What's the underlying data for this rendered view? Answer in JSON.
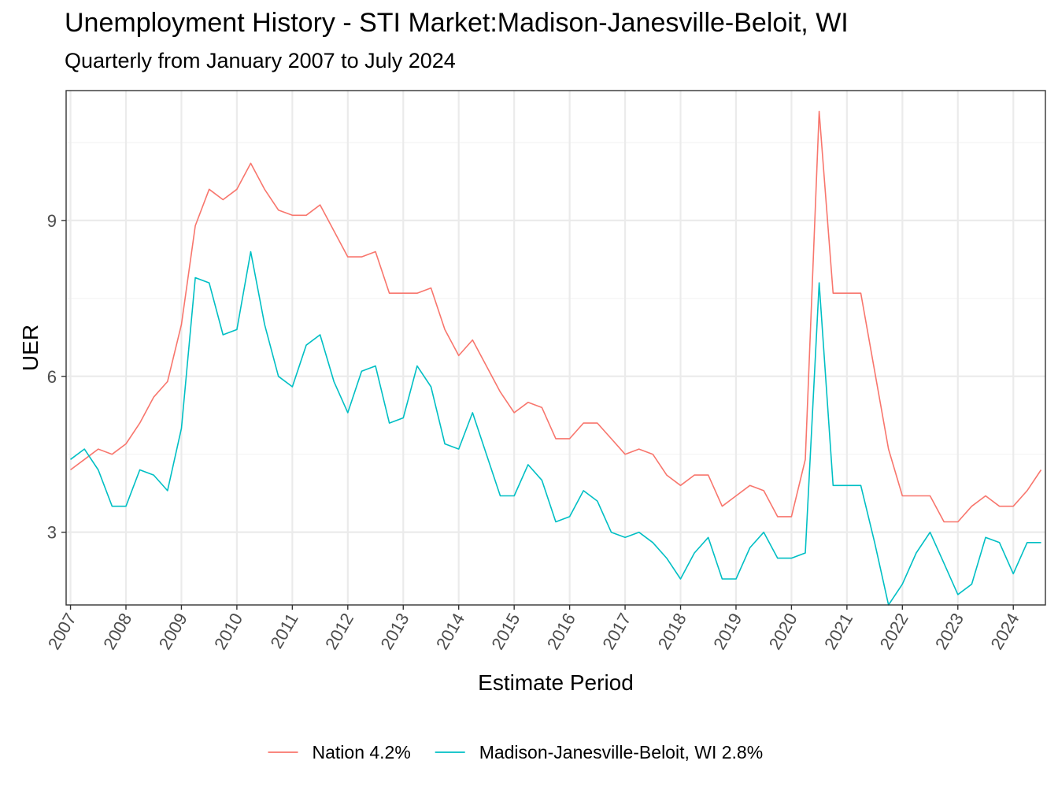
{
  "chart_data": {
    "type": "line",
    "title": "Unemployment History - STI Market:Madison-Janesville-Beloit, WI",
    "subtitle": "Quarterly from January 2007 to July 2024",
    "xlabel": "Estimate Period",
    "ylabel": "UER",
    "x_range": [
      2007,
      2024.5
    ],
    "ylim": [
      1.6,
      11.5
    ],
    "y_ticks": [
      3,
      6,
      9
    ],
    "x_tick_labels": [
      "2007",
      "2008",
      "2009",
      "2010",
      "2011",
      "2012",
      "2013",
      "2014",
      "2015",
      "2016",
      "2017",
      "2018",
      "2019",
      "2020",
      "2021",
      "2022",
      "2023",
      "2024"
    ],
    "grid": true,
    "legend_position": "bottom",
    "x": [
      "2007-01",
      "2007-04",
      "2007-07",
      "2007-10",
      "2008-01",
      "2008-04",
      "2008-07",
      "2008-10",
      "2009-01",
      "2009-04",
      "2009-07",
      "2009-10",
      "2010-01",
      "2010-04",
      "2010-07",
      "2010-10",
      "2011-01",
      "2011-04",
      "2011-07",
      "2011-10",
      "2012-01",
      "2012-04",
      "2012-07",
      "2012-10",
      "2013-01",
      "2013-04",
      "2013-07",
      "2013-10",
      "2014-01",
      "2014-04",
      "2014-07",
      "2014-10",
      "2015-01",
      "2015-04",
      "2015-07",
      "2015-10",
      "2016-01",
      "2016-04",
      "2016-07",
      "2016-10",
      "2017-01",
      "2017-04",
      "2017-07",
      "2017-10",
      "2018-01",
      "2018-04",
      "2018-07",
      "2018-10",
      "2019-01",
      "2019-04",
      "2019-07",
      "2019-10",
      "2020-01",
      "2020-04",
      "2020-07",
      "2020-10",
      "2021-01",
      "2021-04",
      "2021-07",
      "2021-10",
      "2022-01",
      "2022-04",
      "2022-07",
      "2022-10",
      "2023-01",
      "2023-04",
      "2023-07",
      "2023-10",
      "2024-01",
      "2024-04",
      "2024-07"
    ],
    "series": [
      {
        "name": "Nation 4.2%",
        "color": "#F8766D",
        "values": [
          4.2,
          4.4,
          4.6,
          4.5,
          4.7,
          5.1,
          5.6,
          5.9,
          7.0,
          8.9,
          9.6,
          9.4,
          9.6,
          10.1,
          9.6,
          9.2,
          9.1,
          9.1,
          9.3,
          8.8,
          8.3,
          8.3,
          8.4,
          7.6,
          7.6,
          7.6,
          7.7,
          6.9,
          6.4,
          6.7,
          6.2,
          5.7,
          5.3,
          5.5,
          5.4,
          4.8,
          4.8,
          5.1,
          5.1,
          4.8,
          4.5,
          4.6,
          4.5,
          4.1,
          3.9,
          4.1,
          4.1,
          3.5,
          3.7,
          3.9,
          3.8,
          3.3,
          3.3,
          4.4,
          11.1,
          7.6,
          7.6,
          7.6,
          6.1,
          4.6,
          3.7,
          3.7,
          3.7,
          3.2,
          3.2,
          3.5,
          3.7,
          3.5,
          3.5,
          3.8,
          4.2
        ]
      },
      {
        "name": "Madison-Janesville-Beloit, WI 2.8%",
        "color": "#00BFC4",
        "values": [
          4.4,
          4.6,
          4.2,
          3.5,
          3.5,
          4.2,
          4.1,
          3.8,
          5.0,
          7.9,
          7.8,
          6.8,
          6.9,
          8.4,
          7.0,
          6.0,
          5.8,
          6.6,
          6.8,
          5.9,
          5.3,
          6.1,
          6.2,
          5.1,
          5.2,
          6.2,
          5.8,
          4.7,
          4.6,
          5.3,
          4.5,
          3.7,
          3.7,
          4.3,
          4.0,
          3.2,
          3.3,
          3.8,
          3.6,
          3.0,
          2.9,
          3.0,
          2.8,
          2.5,
          2.1,
          2.6,
          2.9,
          2.1,
          2.1,
          2.7,
          3.0,
          2.5,
          2.5,
          2.6,
          7.8,
          3.9,
          3.9,
          3.9,
          2.8,
          1.6,
          2.0,
          2.6,
          3.0,
          2.4,
          1.8,
          2.0,
          2.9,
          2.8,
          2.2,
          2.8,
          2.8
        ]
      }
    ]
  }
}
